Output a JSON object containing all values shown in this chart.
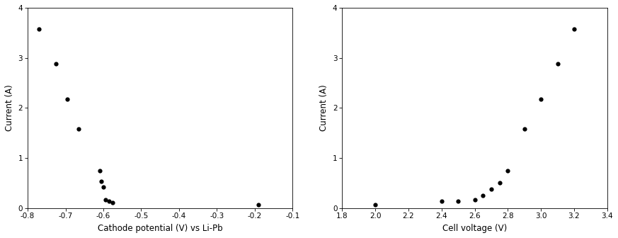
{
  "left_x": [
    -0.77,
    -0.725,
    -0.695,
    -0.665,
    -0.61,
    -0.605,
    -0.6,
    -0.595,
    -0.585,
    -0.575,
    -0.19
  ],
  "left_y": [
    3.58,
    2.88,
    2.17,
    1.58,
    0.75,
    0.53,
    0.42,
    0.17,
    0.13,
    0.1,
    0.07
  ],
  "left_xlabel": "Cathode potential (V) vs Li-Pb",
  "left_ylabel": "Current (A)",
  "left_xlim": [
    -0.8,
    -0.1
  ],
  "left_ylim": [
    0,
    4
  ],
  "left_xticks": [
    -0.8,
    -0.7,
    -0.6,
    -0.5,
    -0.4,
    -0.3,
    -0.2,
    -0.1
  ],
  "left_yticks": [
    0,
    1,
    2,
    3,
    4
  ],
  "right_x": [
    2.0,
    2.4,
    2.5,
    2.6,
    2.65,
    2.7,
    2.75,
    2.8,
    2.9,
    3.0,
    3.1,
    3.2
  ],
  "right_y": [
    0.07,
    0.13,
    0.14,
    0.17,
    0.25,
    0.38,
    0.5,
    0.75,
    1.58,
    2.17,
    2.88,
    3.58
  ],
  "right_xlabel": "Cell voltage (V)",
  "right_ylabel": "Current (A)",
  "right_xlim": [
    1.8,
    3.4
  ],
  "right_ylim": [
    0,
    4
  ],
  "right_xticks": [
    1.8,
    2.0,
    2.2,
    2.4,
    2.6,
    2.8,
    3.0,
    3.2,
    3.4
  ],
  "right_yticks": [
    0,
    1,
    2,
    3,
    4
  ],
  "marker_color": "#000000",
  "marker_size": 4.5,
  "bg_color": "#ffffff",
  "tick_fontsize": 7.5,
  "label_fontsize": 8.5,
  "spine_linewidth": 0.6
}
